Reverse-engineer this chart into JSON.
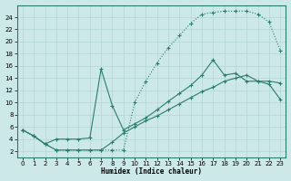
{
  "xlabel": "Humidex (Indice chaleur)",
  "bg_color": "#cce8e8",
  "line_color": "#2a7d6e",
  "grid_color": "#b8d8d8",
  "xlim": [
    -0.5,
    23.5
  ],
  "ylim": [
    1,
    26
  ],
  "xticks": [
    0,
    1,
    2,
    3,
    4,
    5,
    6,
    7,
    8,
    9,
    10,
    11,
    12,
    13,
    14,
    15,
    16,
    17,
    18,
    19,
    20,
    21,
    22,
    23
  ],
  "yticks": [
    2,
    4,
    6,
    8,
    10,
    12,
    14,
    16,
    18,
    20,
    22,
    24
  ],
  "line_dotted_x": [
    0,
    1,
    2,
    3,
    4,
    5,
    6,
    7,
    8,
    9,
    10,
    11,
    12,
    13,
    14,
    15,
    16,
    17,
    18,
    19,
    20,
    21,
    22,
    23
  ],
  "line_dotted_y": [
    5.5,
    4.5,
    3.2,
    2.2,
    2.2,
    2.2,
    2.2,
    2.2,
    2.2,
    2.2,
    10.0,
    13.5,
    16.5,
    19.0,
    21.0,
    23.0,
    24.5,
    24.8,
    25.0,
    25.0,
    25.0,
    24.5,
    23.2,
    18.5
  ],
  "line_mid_x": [
    0,
    1,
    2,
    3,
    4,
    5,
    6,
    7,
    8,
    9,
    10,
    11,
    12,
    13,
    14,
    15,
    16,
    17,
    18,
    19,
    20,
    21,
    22,
    23
  ],
  "line_mid_y": [
    5.5,
    4.5,
    3.2,
    4.0,
    4.0,
    4.0,
    4.2,
    15.5,
    9.5,
    5.5,
    6.5,
    7.5,
    8.8,
    10.2,
    11.5,
    12.8,
    14.5,
    17.0,
    14.5,
    14.8,
    13.5,
    13.5,
    13.5,
    13.2
  ],
  "line_low_x": [
    0,
    1,
    2,
    3,
    4,
    5,
    6,
    7,
    8,
    9,
    10,
    11,
    12,
    13,
    14,
    15,
    16,
    17,
    18,
    19,
    20,
    21,
    22,
    23
  ],
  "line_low_y": [
    5.5,
    4.5,
    3.2,
    2.2,
    2.2,
    2.2,
    2.2,
    2.2,
    3.5,
    5.0,
    6.0,
    7.0,
    7.8,
    8.8,
    9.8,
    10.8,
    11.8,
    12.5,
    13.5,
    14.0,
    14.5,
    13.5,
    13.0,
    10.5
  ]
}
